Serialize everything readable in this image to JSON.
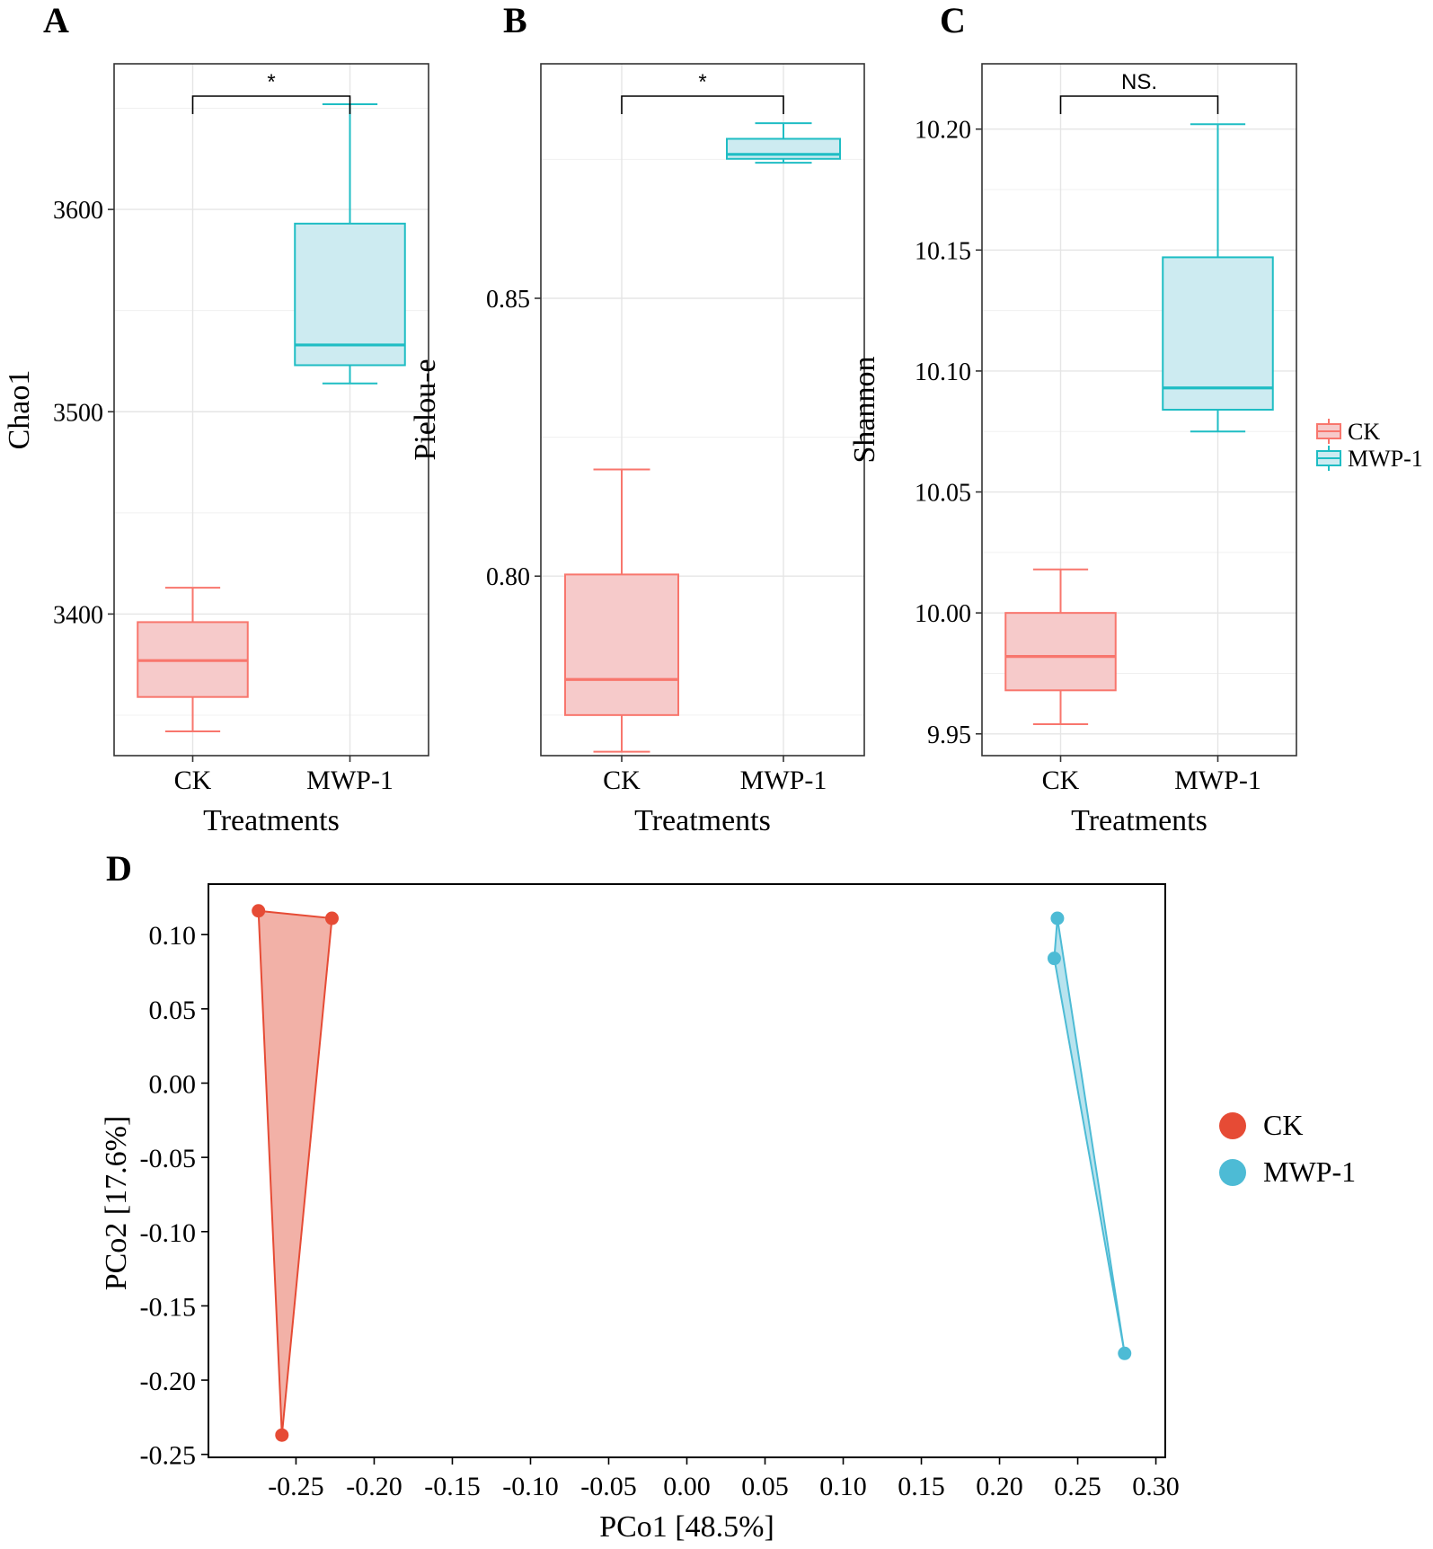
{
  "chart_data": [
    {
      "panel": "A",
      "type": "box",
      "categories": [
        "CK",
        "MWP-1"
      ],
      "xlabel": "Treatments",
      "ylabel": "Chao1",
      "ylim": [
        3330,
        3672
      ],
      "yticks": [
        3400,
        3500,
        3600
      ],
      "minor_gridlines": [
        3350,
        3450,
        3550,
        3650
      ],
      "boxes": [
        {
          "group": "CK",
          "min": 3342,
          "q1": 3359,
          "median": 3377,
          "q3": 3396,
          "max": 3413
        },
        {
          "group": "MWP-1",
          "min": 3514,
          "q1": 3523,
          "median": 3533,
          "q3": 3593,
          "max": 3652
        }
      ],
      "significance": "*"
    },
    {
      "panel": "B",
      "type": "box",
      "categories": [
        "CK",
        "MWP-1"
      ],
      "xlabel": "Treatments",
      "ylabel": "Pielou-e",
      "ylim": [
        0.7677,
        0.8922
      ],
      "yticks": [
        0.8,
        0.85
      ],
      "yticklabels": [
        "0.80",
        "0.85"
      ],
      "minor_gridlines": [
        0.775,
        0.825,
        0.875
      ],
      "boxes": [
        {
          "group": "CK",
          "min": 0.7684,
          "q1": 0.775,
          "median": 0.7814,
          "q3": 0.8003,
          "max": 0.8192
        },
        {
          "group": "MWP-1",
          "min": 0.8744,
          "q1": 0.8751,
          "median": 0.8759,
          "q3": 0.8787,
          "max": 0.8815
        }
      ],
      "significance": "*"
    },
    {
      "panel": "C",
      "type": "box",
      "categories": [
        "CK",
        "MWP-1"
      ],
      "xlabel": "Treatments",
      "ylabel": "Shannon",
      "ylim": [
        9.941,
        10.227
      ],
      "yticks": [
        9.95,
        10.0,
        10.05,
        10.1,
        10.15,
        10.2
      ],
      "yticklabels": [
        "9.95",
        "10.00",
        "10.05",
        "10.10",
        "10.15",
        "10.20"
      ],
      "minor_gridlines": [
        9.975,
        10.025,
        10.075,
        10.125,
        10.175
      ],
      "boxes": [
        {
          "group": "CK",
          "min": 9.954,
          "q1": 9.968,
          "median": 9.982,
          "q3": 10.0,
          "max": 10.018
        },
        {
          "group": "MWP-1",
          "min": 10.075,
          "q1": 10.084,
          "median": 10.093,
          "q3": 10.147,
          "max": 10.202
        }
      ],
      "significance": "NS.",
      "legend": [
        "CK",
        "MWP-1"
      ]
    },
    {
      "panel": "D",
      "type": "scatter",
      "xlabel": "PCo1 [48.5%]",
      "ylabel": "PCo2 [17.6%]",
      "xlim": [
        -0.306,
        0.306
      ],
      "ylim": [
        -0.252,
        0.134
      ],
      "xticks": [
        -0.25,
        -0.2,
        -0.15,
        -0.1,
        -0.05,
        0.0,
        0.05,
        0.1,
        0.15,
        0.2,
        0.25,
        0.3
      ],
      "xticklabels": [
        "-0.25",
        "-0.20",
        "-0.15",
        "-0.10",
        "-0.05",
        "0.00",
        "0.05",
        "0.10",
        "0.15",
        "0.20",
        "0.25",
        "0.30"
      ],
      "yticks": [
        0.1,
        0.05,
        0.0,
        -0.05,
        -0.1,
        -0.15,
        -0.2,
        -0.25
      ],
      "yticklabels": [
        "0.10",
        "0.05",
        "0.00",
        "-0.05",
        "-0.10",
        "-0.15",
        "-0.20",
        "-0.25"
      ],
      "series": [
        {
          "name": "CK",
          "x": [
            -0.274,
            -0.227,
            -0.259
          ],
          "y": [
            0.116,
            0.111,
            -0.237
          ]
        },
        {
          "name": "MWP-1",
          "x": [
            0.237,
            0.235,
            0.28
          ],
          "y": [
            0.111,
            0.084,
            -0.182
          ]
        }
      ],
      "legend": [
        "CK",
        "MWP-1"
      ]
    }
  ],
  "panel_letters": [
    "A",
    "B",
    "C",
    "D"
  ],
  "colors": {
    "ck_line": "#F8766D",
    "ck_fill": "#F6CACA",
    "mwp_line": "#1FBDC4",
    "mwp_fill": "#CDEBF1",
    "ck_point": "#E64B35",
    "mwp_point": "#4DBBD5",
    "ck_hull": "#F2B1A7",
    "mwp_hull": "#B8E3EE",
    "grid": "#E5E5E5",
    "axis": "#333333"
  }
}
